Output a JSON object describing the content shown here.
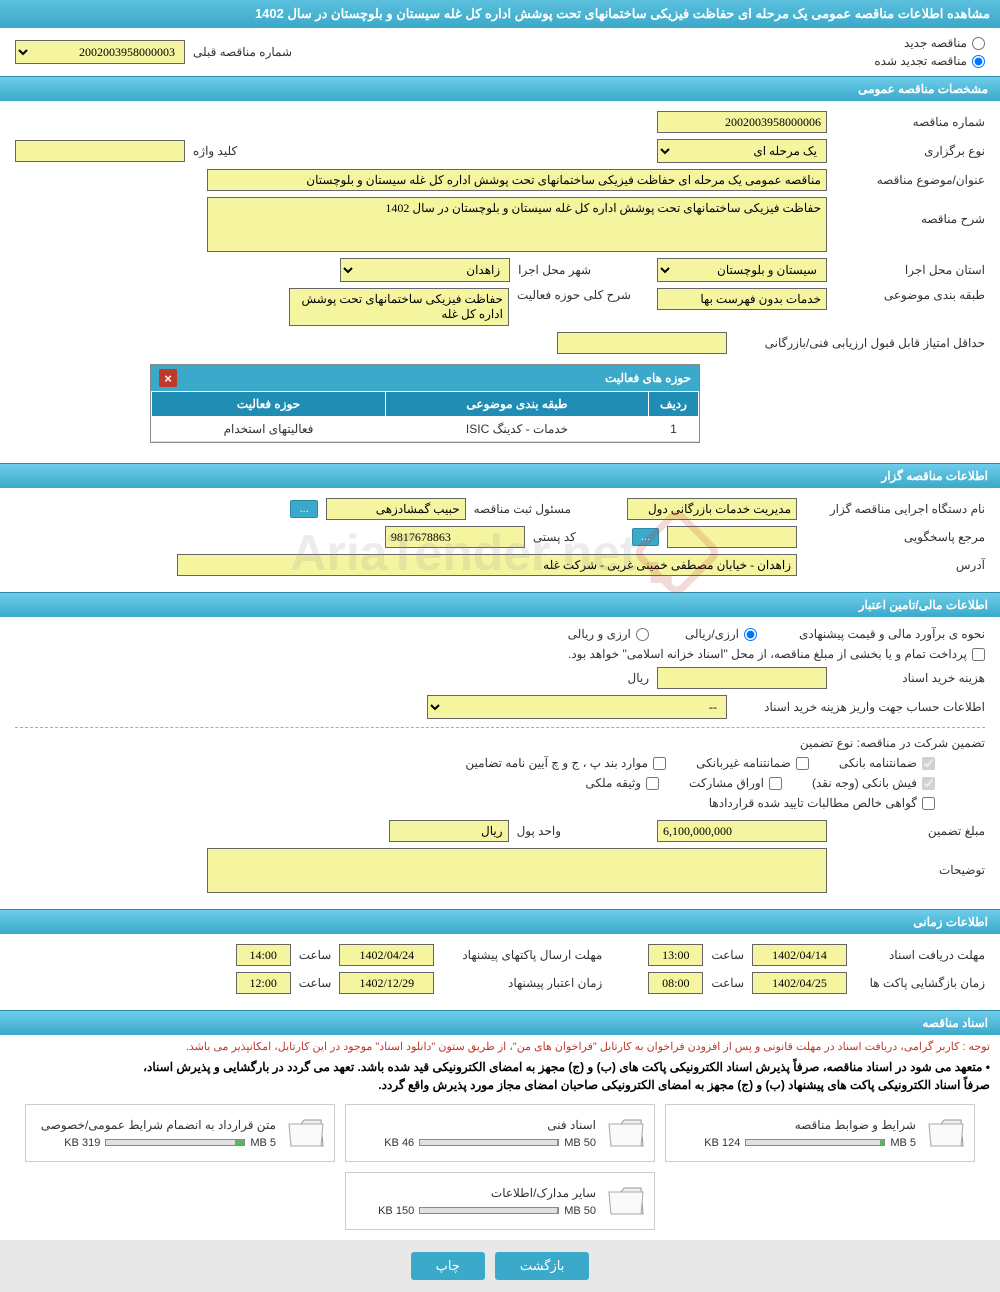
{
  "page_title": "مشاهده اطلاعات مناقصه عمومی یک مرحله ای حفاظت فیزیکی ساختمانهای تحت پوشش اداره کل غله سیستان و بلوچستان در سال 1402",
  "radio": {
    "new_label": "مناقصه جدید",
    "renewed_label": "مناقصه تجدید شده"
  },
  "prev_tender": {
    "label": "شماره مناقصه قبلی",
    "value": "2002003958000003"
  },
  "sections": {
    "general": "مشخصات مناقصه عمومی",
    "holder": "اطلاعات مناقصه گزار",
    "financial": "اطلاعات مالی/تامین اعتبار",
    "timing": "اطلاعات زمانی",
    "docs": "اسناد مناقصه"
  },
  "general": {
    "number_label": "شماره مناقصه",
    "number": "2002003958000006",
    "type_label": "نوع برگزاری",
    "type": "یک مرحله ای",
    "keyword_label": "کلید واژه",
    "keyword": "",
    "title_label": "عنوان/موضوع مناقصه",
    "title": "مناقصه عمومی یک مرحله ای حفاظت فیزیکی ساختمانهای تحت پوشش اداره کل غله سیستان و بلوچستان",
    "desc_label": "شرح مناقصه",
    "desc": "حفاظت فیزیکی ساختمانهای تحت پوشش اداره کل غله سیستان و بلوچستان در سال 1402",
    "province_label": "استان محل اجرا",
    "province": "سیستان و بلوچستان",
    "city_label": "شهر محل اجرا",
    "city": "زاهدان",
    "category_label": "طبقه بندی موضوعی",
    "category": "خدمات بدون فهرست بها",
    "scope_label": "شرح کلی حوزه فعالیت",
    "scope": "حفاظت فیزیکی ساختمانهای تحت پوشش اداره کل غله",
    "min_score_label": "حداقل امتیاز قابل قبول ارزیابی فنی/بازرگانی",
    "min_score": ""
  },
  "activity_table": {
    "title": "حوزه های فعالیت",
    "cols": [
      "ردیف",
      "طبقه بندی موضوعی",
      "حوزه فعالیت"
    ],
    "rows": [
      [
        "1",
        "خدمات - کدینگ ISIC",
        "فعالیتهای استخدام"
      ]
    ]
  },
  "holder": {
    "exec_label": "نام دستگاه اجرایی مناقصه گزار",
    "exec": "مدیریت خدمات بازرگانی دول",
    "reg_label": "مسئول ثبت مناقصه",
    "reg": "حبیب گمشادزهی",
    "responder_label": "مرجع پاسخگویی",
    "responder": "",
    "postal_label": "کد پستی",
    "postal": "9817678863",
    "address_label": "آدرس",
    "address": "زاهدان - خیابان مصطفی خمینی غربی - شرکت غله"
  },
  "financial": {
    "method_label": "نحوه ی برآورد مالی و قیمت پیشنهادی",
    "currency_radio1": "ارزی/ریالی",
    "currency_radio2": "ارزی و ریالی",
    "treasury_note": "پرداخت تمام و یا بخشی از مبلغ مناقصه، از محل \"اسناد خزانه اسلامی\" خواهد بود.",
    "doc_cost_label": "هزینه خرید اسناد",
    "doc_cost": "",
    "rial": "ریال",
    "account_label": "اطلاعات حساب جهت واریز هزینه خرید اسناد",
    "account": "--",
    "guarantee_label": "تضمین شرکت در مناقصه:    نوع تضمین",
    "checks": {
      "bank_guarantee": "ضمانتنامه بانکی",
      "nonbank_guarantee": "ضمانتنامه غیربانکی",
      "regulation": "موارد بند پ ، ج و چ آیین نامه تضامین",
      "cash": "فیش بانکی (وجه نقد)",
      "bonds": "اوراق مشارکت",
      "property": "وثیقه ملکی",
      "contracts": "گواهی خالص مطالبات تایید شده قراردادها"
    },
    "amount_label": "مبلغ تضمین",
    "amount": "6,100,000,000",
    "unit_label": "واحد پول",
    "unit": "ریال",
    "notes_label": "توضیحات",
    "notes": ""
  },
  "timing": {
    "receive_label": "مهلت دریافت اسناد",
    "receive_date": "1402/04/14",
    "receive_time": "13:00",
    "submit_label": "مهلت ارسال پاکتهای پیشنهاد",
    "submit_date": "1402/04/24",
    "submit_time": "14:00",
    "open_label": "زمان بازگشایی پاکت ها",
    "open_date": "1402/04/25",
    "open_time": "08:00",
    "validity_label": "زمان اعتبار پیشنهاد",
    "validity_date": "1402/12/29",
    "validity_time": "12:00",
    "time_label": "ساعت"
  },
  "docs": {
    "notice_red": "توجه : کاربر گرامی، دریافت اسناد در مهلت قانونی و پس از افزودن فراخوان به کارتابل \"فراخوان های من\"، از طریق ستون \"دانلود اسناد\" موجود در این کارتابل، امکانپذیر می باشد.",
    "notice1": "• متعهد می شود در اسناد مناقصه، صرفاً پذیرش اسناد الکترونیکی پاکت های (ب) و (ج) مجهز به امضای الکترونیکی قید شده باشد. تعهد می گردد در بارگشایی و پذیرش اسناد،",
    "notice2": "صرفاً اسناد الکترونیکی پاکت های پیشنهاد (ب) و (ج) مجهز به امضای الکترونیکی صاحبان امضای مجاز مورد پذیرش واقع گردد.",
    "items": [
      {
        "title": "شرایط و ضوابط مناقصه",
        "size": "124 KB",
        "max": "5 MB",
        "pct": 3
      },
      {
        "title": "اسناد فنی",
        "size": "46 KB",
        "max": "50 MB",
        "pct": 1
      },
      {
        "title": "متن قرارداد به انضمام شرایط عمومی/خصوصی",
        "size": "319 KB",
        "max": "5 MB",
        "pct": 7
      },
      {
        "title": "سایر مدارک/اطلاعات",
        "size": "150 KB",
        "max": "50 MB",
        "pct": 1
      }
    ]
  },
  "buttons": {
    "back": "بازگشت",
    "print": "چاپ",
    "more": "..."
  },
  "watermark_text": "AriaTender.net"
}
